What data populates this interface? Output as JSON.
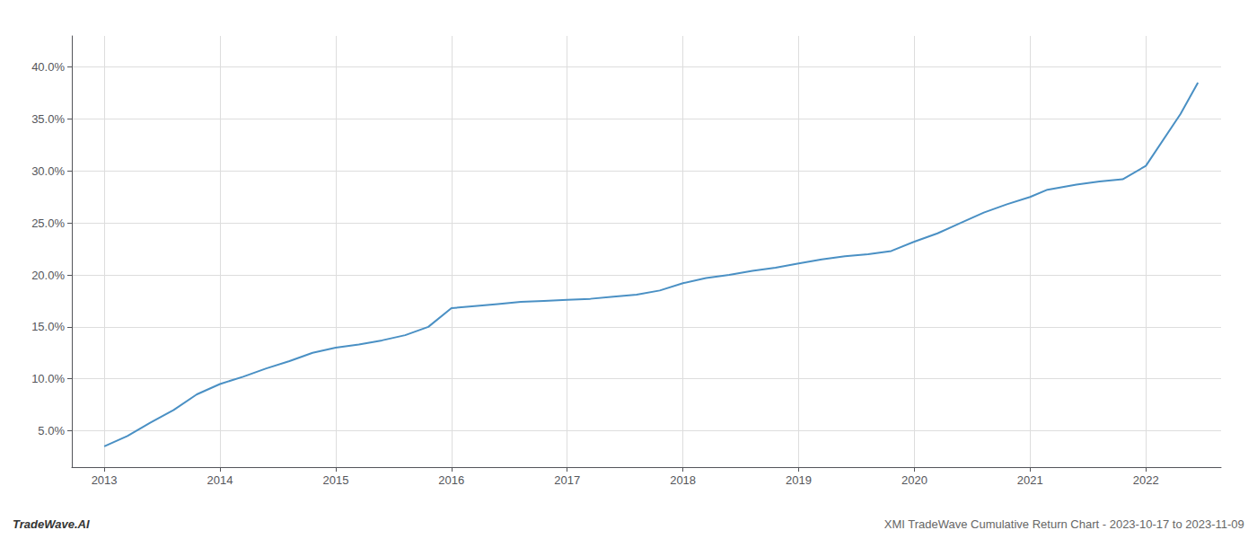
{
  "chart_data": {
    "type": "line",
    "x": [
      2013.0,
      2013.2,
      2013.4,
      2013.6,
      2013.8,
      2014.0,
      2014.2,
      2014.4,
      2014.6,
      2014.8,
      2015.0,
      2015.2,
      2015.4,
      2015.6,
      2015.8,
      2016.0,
      2016.2,
      2016.4,
      2016.6,
      2016.8,
      2017.0,
      2017.2,
      2017.4,
      2017.6,
      2017.8,
      2018.0,
      2018.2,
      2018.4,
      2018.6,
      2018.8,
      2019.0,
      2019.2,
      2019.4,
      2019.6,
      2019.8,
      2020.0,
      2020.2,
      2020.4,
      2020.6,
      2020.8,
      2021.0,
      2021.15,
      2021.4,
      2021.6,
      2021.8,
      2022.0,
      2022.3,
      2022.45
    ],
    "values": [
      3.5,
      4.5,
      5.8,
      7.0,
      8.5,
      9.5,
      10.2,
      11.0,
      11.7,
      12.5,
      13.0,
      13.3,
      13.7,
      14.2,
      15.0,
      16.8,
      17.0,
      17.2,
      17.4,
      17.5,
      17.6,
      17.7,
      17.9,
      18.1,
      18.5,
      19.2,
      19.7,
      20.0,
      20.4,
      20.7,
      21.1,
      21.5,
      21.8,
      22.0,
      22.3,
      23.2,
      24.0,
      25.0,
      26.0,
      26.8,
      27.5,
      28.2,
      28.7,
      29.0,
      29.2,
      30.5,
      35.5,
      38.5
    ],
    "color": "#4a90c4",
    "xlim": [
      2012.72,
      2022.65
    ],
    "ylim": [
      1.5,
      43.0
    ],
    "xticks": [
      2013,
      2014,
      2015,
      2016,
      2017,
      2018,
      2019,
      2020,
      2021,
      2022
    ],
    "yticks": [
      {
        "value": 5.0,
        "label": "5.0%"
      },
      {
        "value": 10.0,
        "label": "10.0%"
      },
      {
        "value": 15.0,
        "label": "15.0%"
      },
      {
        "value": 20.0,
        "label": "20.0%"
      },
      {
        "value": 25.0,
        "label": "25.0%"
      },
      {
        "value": 30.0,
        "label": "30.0%"
      },
      {
        "value": 35.0,
        "label": "35.0%"
      },
      {
        "value": 40.0,
        "label": "40.0%"
      }
    ],
    "grid": true,
    "annotations": [
      "TradeWave.AI",
      "XMI TradeWave Cumulative Return Chart - 2023-10-17 to 2023-11-09"
    ]
  }
}
